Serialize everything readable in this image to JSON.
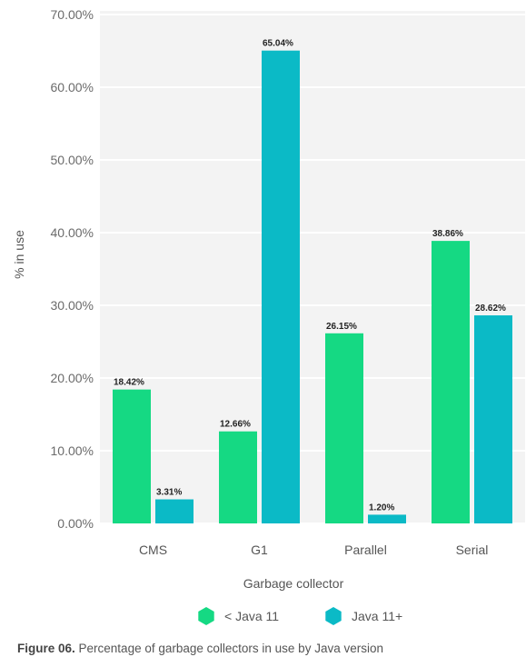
{
  "chart_data": {
    "type": "bar",
    "categories": [
      "CMS",
      "G1",
      "Parallel",
      "Serial"
    ],
    "series": [
      {
        "name": "< Java 11",
        "values": [
          18.42,
          12.66,
          26.15,
          38.86
        ],
        "labels": [
          "18.42%",
          "12.66%",
          "26.15%",
          "38.86%"
        ],
        "color": "#15d983"
      },
      {
        "name": "Java 11+",
        "values": [
          3.31,
          65.04,
          1.2,
          28.62
        ],
        "labels": [
          "3.31%",
          "65.04%",
          "1.20%",
          "28.62%"
        ],
        "color": "#0bbac6"
      }
    ],
    "xlabel": "Garbage collector",
    "ylabel": "% in use",
    "ylim": [
      0,
      70
    ],
    "yticks": [
      0,
      10,
      20,
      30,
      40,
      50,
      60,
      70
    ],
    "ytick_labels": [
      "0.00%",
      "10.00%",
      "20.00%",
      "30.00%",
      "40.00%",
      "50.00%",
      "60.00%",
      "70.00%"
    ],
    "grid": true,
    "legend_position": "bottom",
    "plot_background": "#f3f3f3"
  },
  "caption": {
    "figure_label": "Figure 06.",
    "text": " Percentage of garbage collectors in use by Java version"
  }
}
